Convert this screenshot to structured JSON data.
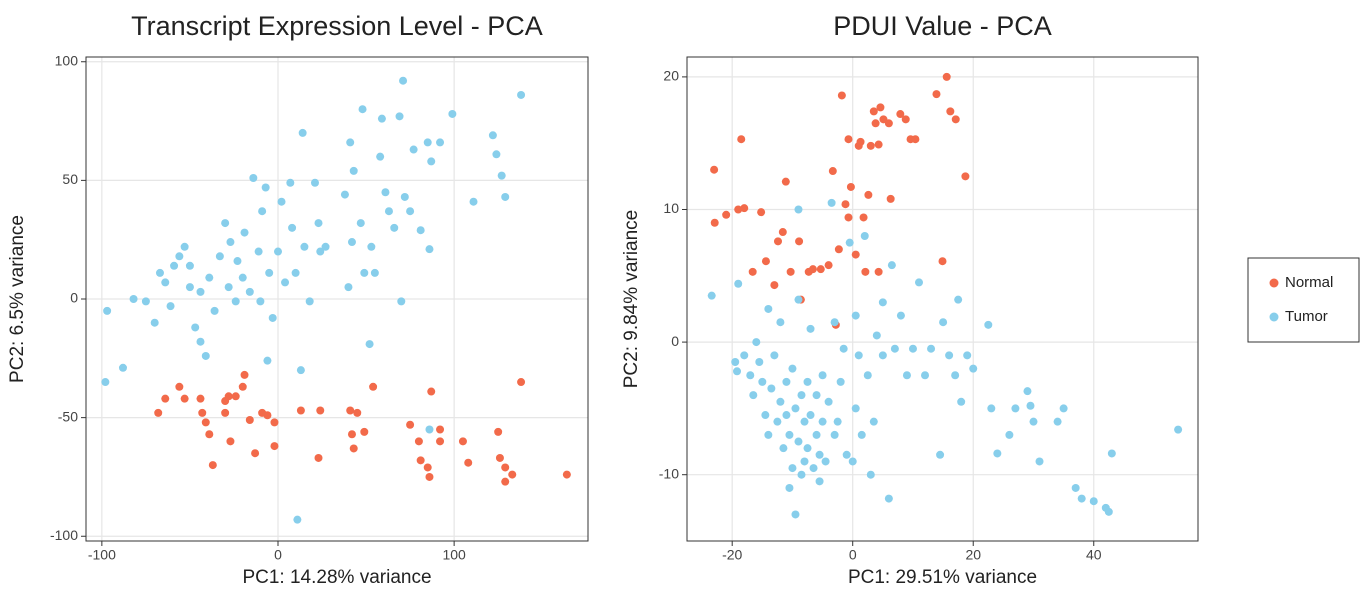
{
  "chart_data": [
    {
      "type": "scatter",
      "title": "Transcript Expression Level - PCA",
      "x_label": "PC1: 14.28% variance",
      "y_label": "PC2: 6.5% variance",
      "xlim": [
        -109,
        176
      ],
      "ylim": [
        -102,
        102
      ],
      "xticks": [
        -100,
        0,
        100
      ],
      "yticks": [
        -100,
        -50,
        0,
        50,
        100
      ],
      "grid": true,
      "series": [
        {
          "color": "#F26A4A",
          "x": [
            -68,
            -64,
            -56,
            -53,
            -44,
            -43,
            -41,
            -39,
            -30,
            -28,
            -24,
            -19,
            -20,
            -30,
            -27,
            -13,
            -9,
            -6,
            -2,
            -2,
            13,
            23,
            24,
            41,
            42,
            43,
            49,
            54,
            45,
            75,
            80,
            81,
            85,
            87,
            92,
            92,
            105,
            108,
            125,
            126,
            129,
            133,
            129,
            138,
            164,
            -37,
            -16,
            86
          ],
          "values": [
            -48,
            -42,
            -37,
            -42,
            -42,
            -48,
            -52,
            -57,
            -43,
            -41,
            -41,
            -32,
            -37,
            -48,
            -60,
            -65,
            -48,
            -49,
            -52,
            -62,
            -47,
            -67,
            -47,
            -47,
            -57,
            -63,
            -56,
            -37,
            -48,
            -53,
            -60,
            -68,
            -71,
            -39,
            -55,
            -60,
            -60,
            -69,
            -56,
            -67,
            -71,
            -74,
            -77,
            -35,
            -74,
            -70,
            -51,
            -75
          ]
        },
        {
          "color": "#87CEEB",
          "x": [
            -98,
            -97,
            -88,
            -82,
            -75,
            -70,
            -67,
            -64,
            -61,
            -59,
            -56,
            -53,
            -50,
            -50,
            -47,
            -44,
            -41,
            -39,
            -36,
            -33,
            -30,
            -28,
            -27,
            -24,
            -23,
            -20,
            -19,
            -16,
            -14,
            -11,
            -10,
            -9,
            -7,
            -6,
            -5,
            -3,
            0,
            2,
            4,
            7,
            8,
            10,
            13,
            14,
            15,
            18,
            21,
            23,
            24,
            27,
            38,
            40,
            41,
            42,
            43,
            47,
            48,
            49,
            52,
            53,
            55,
            58,
            59,
            61,
            63,
            66,
            69,
            70,
            71,
            72,
            75,
            77,
            81,
            85,
            86,
            87,
            92,
            99,
            111,
            122,
            124,
            127,
            129,
            138,
            11,
            86,
            -44
          ],
          "values": [
            -35,
            -5,
            -29,
            0,
            -1,
            -10,
            11,
            7,
            -3,
            14,
            18,
            22,
            14,
            5,
            -12,
            3,
            -24,
            9,
            -5,
            18,
            32,
            5,
            24,
            -1,
            16,
            9,
            28,
            3,
            51,
            20,
            -1,
            37,
            47,
            -26,
            11,
            -8,
            20,
            41,
            7,
            49,
            30,
            11,
            -30,
            70,
            22,
            -1,
            49,
            32,
            20,
            22,
            44,
            5,
            66,
            24,
            54,
            32,
            80,
            11,
            -19,
            22,
            11,
            60,
            76,
            45,
            37,
            30,
            77,
            -1,
            92,
            43,
            37,
            63,
            29,
            66,
            21,
            58,
            66,
            78,
            41,
            69,
            61,
            52,
            43,
            86,
            -93,
            -55,
            -18
          ]
        }
      ]
    },
    {
      "type": "scatter",
      "title": "PDUI Value - PCA",
      "x_label": "PC1: 29.51% variance",
      "y_label": "PC2: 9.84% variance",
      "xlim": [
        -27.5,
        57.3
      ],
      "ylim": [
        -15,
        21.5
      ],
      "xticks": [
        -20,
        0,
        20,
        40
      ],
      "yticks": [
        -10,
        0,
        10,
        20
      ],
      "grid": true,
      "legend": "right",
      "series": [
        {
          "name": "Normal",
          "color": "#F26A4A",
          "x": [
            -23,
            -22.9,
            -21,
            -19,
            -18.5,
            -18,
            -15.2,
            -16.6,
            -14.4,
            -13,
            -12.4,
            -11.6,
            -11.1,
            -10.3,
            -8.9,
            -8.6,
            -7.3,
            -6.6,
            -5.3,
            -4,
            -3.3,
            -2.3,
            -1.8,
            -1.2,
            -0.7,
            -0.7,
            -0.3,
            0.5,
            1,
            1.3,
            1.8,
            2.1,
            3,
            3.5,
            3.8,
            4.3,
            4.6,
            5.1,
            6,
            6.3,
            7.9,
            8.8,
            9.6,
            10.4,
            13.9,
            15.6,
            14.9,
            16.2,
            17.1,
            18.7,
            2.6,
            -2.8,
            4.3
          ],
          "values": [
            13,
            9,
            9.6,
            10,
            15.3,
            10.1,
            9.8,
            5.3,
            6.1,
            4.3,
            7.6,
            8.3,
            12.1,
            5.3,
            7.6,
            3.2,
            5.3,
            5.5,
            5.5,
            5.8,
            12.9,
            7,
            18.6,
            10.4,
            9.4,
            15.3,
            11.7,
            6.6,
            14.8,
            15.1,
            9.4,
            5.3,
            14.8,
            17.4,
            16.5,
            14.9,
            17.7,
            16.8,
            16.5,
            10.8,
            17.2,
            16.8,
            15.3,
            15.3,
            18.7,
            20,
            6.1,
            17.4,
            16.8,
            12.5,
            11.1,
            1.3,
            5.3
          ]
        },
        {
          "name": "Tumor",
          "color": "#87CEEB",
          "x": [
            -23.4,
            -19,
            -19.5,
            -19.2,
            -18,
            -17,
            -16.5,
            -16,
            -15.5,
            -15,
            -14.5,
            -14,
            -14,
            -13.5,
            -13,
            -12.5,
            -12,
            -12,
            -11.5,
            -11,
            -11,
            -10.5,
            -10.5,
            -10,
            -10,
            -9.5,
            -9.5,
            -9,
            -9,
            -9,
            -8.5,
            -8.5,
            -8,
            -8,
            -7.5,
            -7.5,
            -7,
            -7,
            -6.5,
            -6,
            -6,
            -5.5,
            -5.5,
            -5,
            -5,
            -4.5,
            -4,
            -3.5,
            -3,
            -3,
            -2.5,
            -2,
            -1.5,
            -1,
            -0.5,
            0,
            0.5,
            0.5,
            1,
            1.5,
            2,
            2.5,
            3,
            3.5,
            4,
            5,
            5,
            6,
            6.5,
            7,
            8,
            9,
            10,
            11,
            12,
            13,
            14.5,
            15,
            16,
            17,
            17.5,
            18,
            19,
            20,
            22.5,
            23,
            24,
            26,
            27,
            29,
            29.5,
            30,
            31,
            34,
            35,
            37,
            38,
            40,
            42,
            43,
            42.5,
            54
          ],
          "values": [
            3.5,
            4.4,
            -1.5,
            -2.2,
            -1,
            -2.5,
            -4,
            0,
            -1.5,
            -3,
            -5.5,
            2.5,
            -7,
            -3.5,
            -1,
            -6,
            1.5,
            -4.5,
            -8,
            -3,
            -5.5,
            -7,
            -11,
            -2,
            -9.5,
            -5,
            -13,
            -7.5,
            3.2,
            10,
            -4,
            -10,
            -6,
            -9,
            -3,
            -8,
            -5.5,
            1,
            -9.5,
            -7,
            -4,
            -8.5,
            -10.5,
            -6,
            -2.5,
            -9,
            -4.5,
            10.5,
            -7,
            1.5,
            -6,
            -3,
            -0.5,
            -8.5,
            7.5,
            -9,
            -5,
            2,
            -1,
            -7,
            8,
            -2.5,
            -10,
            -6,
            0.5,
            -1,
            3,
            -11.8,
            5.8,
            -0.5,
            2,
            -2.5,
            -0.5,
            4.5,
            -2.5,
            -0.5,
            -8.5,
            1.5,
            -1,
            -2.5,
            3.2,
            -4.5,
            -1,
            -2,
            1.3,
            -5,
            -8.4,
            -7,
            -5,
            -3.7,
            -4.8,
            -6,
            -9,
            -6,
            -5,
            -11,
            -11.8,
            -12,
            -12.5,
            -8.4,
            -12.8,
            -6.6
          ]
        }
      ]
    }
  ]
}
